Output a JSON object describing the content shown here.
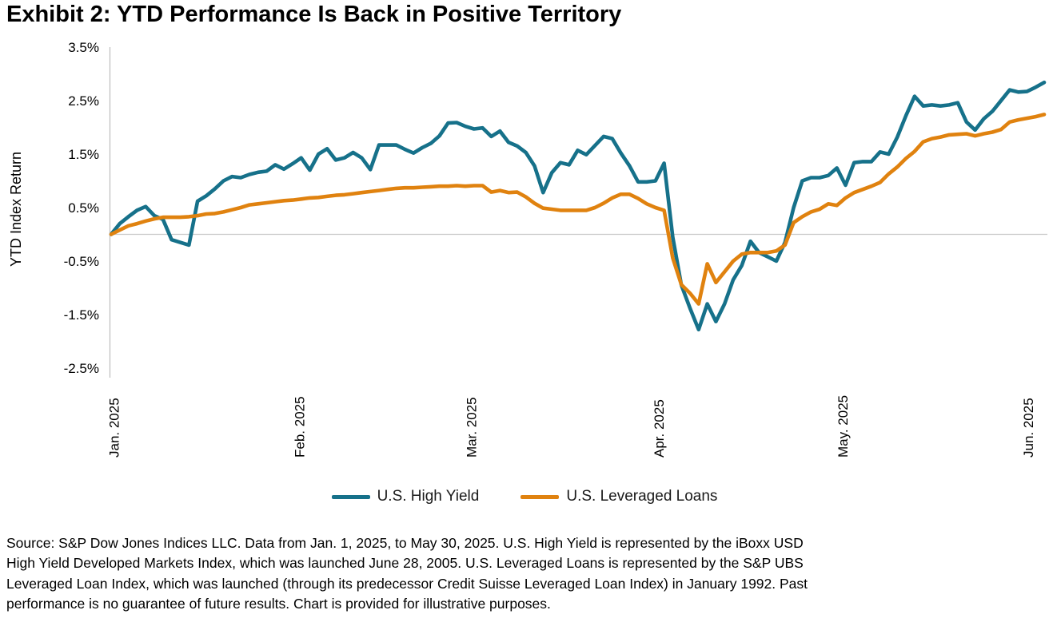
{
  "title": "Exhibit 2: YTD Performance Is Back in Positive Territory",
  "colors": {
    "high_yield": "#16718A",
    "leveraged_loans": "#E0820F",
    "axis_line": "#BDBDBD",
    "zero_gridline": "#C9C9C9",
    "text": "#000000"
  },
  "legend": {
    "items": [
      {
        "label": "U.S. High Yield"
      },
      {
        "label": "U.S. Leveraged Loans"
      }
    ]
  },
  "source_lines": [
    "Source: S&P Dow Jones Indices LLC. Data from Jan. 1, 2025, to May 30, 2025. U.S. High Yield is represented by the iBoxx USD",
    "High Yield Developed Markets Index, which was launched June 28, 2005. U.S. Leveraged Loans is represented by the S&P UBS",
    "Leveraged Loan Index, which was launched (through its predecessor Credit Suisse Leveraged Loan Index) in January 1992. Past",
    "performance is no guarantee of future results. Chart is provided for illustrative purposes."
  ],
  "chart_data": {
    "type": "line",
    "title": "Exhibit 2: YTD Performance Is Back in Positive Territory",
    "xlabel": "",
    "ylabel": "YTD Index Return",
    "ylim": [
      -2.5,
      3.5
    ],
    "grid": "horizontal zero-line only",
    "legend_position": "bottom center",
    "x_unit": "trading days, evenly spaced, Jan. 1 2025 to May 30 2025",
    "y_ticks": [
      {
        "v": 3.5,
        "label": "3.5%"
      },
      {
        "v": 2.5,
        "label": "2.5%"
      },
      {
        "v": 1.5,
        "label": "1.5%"
      },
      {
        "v": 0.5,
        "label": "0.5%"
      },
      {
        "v": -0.5,
        "label": "-0.5%"
      },
      {
        "v": -1.5,
        "label": "-1.5%"
      },
      {
        "v": -2.5,
        "label": "-2.5%"
      }
    ],
    "x_ticks": [
      {
        "label": "Jan. 2025",
        "pos": 0.003
      },
      {
        "label": "Feb. 2025",
        "pos": 0.202
      },
      {
        "label": "Mar. 2025",
        "pos": 0.386
      },
      {
        "label": "Apr. 2025",
        "pos": 0.587
      },
      {
        "label": "May. 2025",
        "pos": 0.784
      },
      {
        "label": "Jun. 2025",
        "pos": 0.983
      }
    ],
    "series": [
      {
        "name": "U.S. High Yield",
        "color": "#16718A",
        "values": [
          0.0,
          0.2,
          0.33,
          0.45,
          0.52,
          0.35,
          0.28,
          -0.1,
          -0.15,
          -0.2,
          0.62,
          0.72,
          0.85,
          1.0,
          1.08,
          1.06,
          1.12,
          1.16,
          1.18,
          1.3,
          1.22,
          1.32,
          1.43,
          1.2,
          1.5,
          1.6,
          1.39,
          1.43,
          1.53,
          1.43,
          1.21,
          1.67,
          1.67,
          1.67,
          1.59,
          1.52,
          1.62,
          1.7,
          1.84,
          2.08,
          2.09,
          2.02,
          1.97,
          1.99,
          1.83,
          1.93,
          1.72,
          1.65,
          1.53,
          1.28,
          0.78,
          1.15,
          1.34,
          1.3,
          1.57,
          1.49,
          1.66,
          1.83,
          1.79,
          1.52,
          1.28,
          0.98,
          0.98,
          1.0,
          1.33,
          -0.05,
          -0.95,
          -1.38,
          -1.78,
          -1.3,
          -1.63,
          -1.3,
          -0.85,
          -0.58,
          -0.13,
          -0.34,
          -0.42,
          -0.5,
          -0.15,
          0.5,
          1.0,
          1.06,
          1.06,
          1.1,
          1.24,
          0.92,
          1.34,
          1.36,
          1.36,
          1.54,
          1.5,
          1.82,
          2.22,
          2.58,
          2.4,
          2.42,
          2.4,
          2.42,
          2.46,
          2.1,
          1.95,
          2.16,
          2.3,
          2.5,
          2.7,
          2.66,
          2.67,
          2.75,
          2.84
        ]
      },
      {
        "name": "U.S. Leveraged Loans",
        "color": "#E0820F",
        "values": [
          0.0,
          0.08,
          0.16,
          0.2,
          0.25,
          0.29,
          0.32,
          0.32,
          0.32,
          0.33,
          0.35,
          0.38,
          0.39,
          0.42,
          0.46,
          0.5,
          0.55,
          0.57,
          0.59,
          0.61,
          0.63,
          0.64,
          0.66,
          0.68,
          0.69,
          0.71,
          0.73,
          0.74,
          0.76,
          0.78,
          0.8,
          0.82,
          0.84,
          0.86,
          0.87,
          0.87,
          0.88,
          0.89,
          0.9,
          0.9,
          0.91,
          0.9,
          0.91,
          0.91,
          0.79,
          0.82,
          0.78,
          0.79,
          0.7,
          0.58,
          0.49,
          0.47,
          0.45,
          0.45,
          0.45,
          0.45,
          0.5,
          0.58,
          0.68,
          0.75,
          0.75,
          0.67,
          0.57,
          0.5,
          0.45,
          -0.44,
          -0.94,
          -1.1,
          -1.3,
          -0.55,
          -0.9,
          -0.7,
          -0.5,
          -0.37,
          -0.34,
          -0.34,
          -0.34,
          -0.31,
          -0.2,
          0.22,
          0.33,
          0.42,
          0.47,
          0.57,
          0.54,
          0.68,
          0.78,
          0.84,
          0.9,
          0.97,
          1.13,
          1.26,
          1.42,
          1.55,
          1.73,
          1.79,
          1.82,
          1.86,
          1.87,
          1.88,
          1.84,
          1.88,
          1.91,
          1.96,
          2.1,
          2.14,
          2.17,
          2.2,
          2.24
        ]
      }
    ]
  }
}
